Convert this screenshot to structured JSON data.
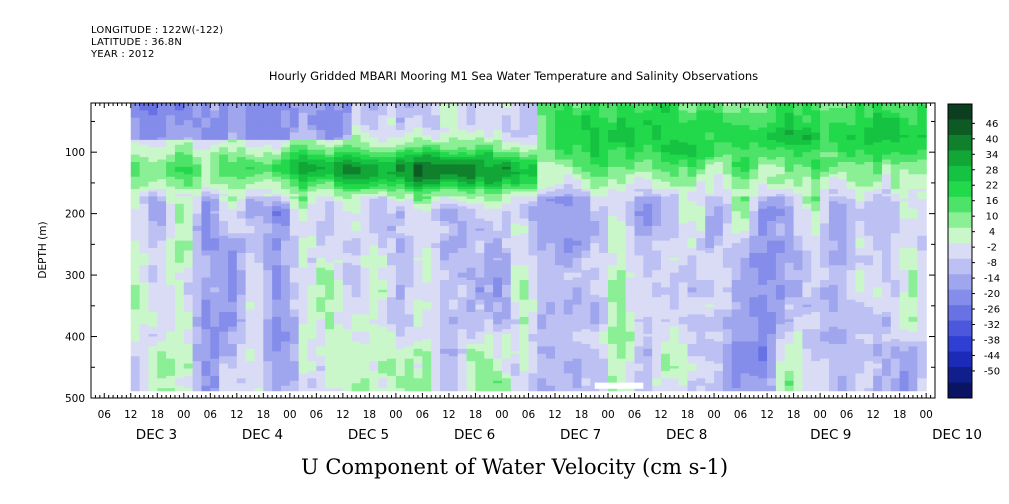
{
  "header": {
    "longitude": "LONGITUDE : 122W(-122)",
    "latitude": "LATITUDE : 36.8N",
    "year": "YEAR : 2012"
  },
  "chart_data": {
    "type": "heatmap",
    "title": "Hourly Gridded MBARI Mooring M1 Sea Water Temperature and Salinity Observations",
    "xlabel": "U Component of Water Velocity (cm s-1)",
    "ylabel": "DEPTH (m)",
    "y_ticks": [
      "100",
      "200",
      "300",
      "400",
      "500"
    ],
    "y_range": [
      20,
      500
    ],
    "hour_ticks": [
      "06",
      "12",
      "18",
      "00",
      "06",
      "12",
      "18",
      "00",
      "06",
      "12",
      "18",
      "00",
      "06",
      "12",
      "18",
      "00",
      "06",
      "12",
      "18",
      "00",
      "06",
      "12",
      "18",
      "00",
      "06",
      "12",
      "18",
      "00",
      "06",
      "12",
      "18",
      "00"
    ],
    "day_labels": [
      {
        "label": "DEC  3",
        "day": 3
      },
      {
        "label": "DEC  4",
        "day": 4
      },
      {
        "label": "DEC  5",
        "day": 5
      },
      {
        "label": "DEC  6",
        "day": 6
      },
      {
        "label": "DEC  7",
        "day": 7
      },
      {
        "label": "DEC  8",
        "day": 8
      },
      {
        "label": "DEC  9",
        "day": 9
      },
      {
        "label": "DEC 10",
        "day": 10
      }
    ],
    "time_range": {
      "start": "DEC 2 03:00",
      "end": "DEC 10 02:00"
    },
    "data_extent": {
      "start": "DEC 2 12:00",
      "end": "DEC 10 00:00",
      "depth_top": 20,
      "depth_bottom": 485
    },
    "gap": {
      "start": "DEC 6 21:00",
      "end": "DEC 7 08:00",
      "depth_from": 475,
      "depth_to": 485
    },
    "colorbar": {
      "levels": [
        "46",
        "40",
        "34",
        "28",
        "22",
        "16",
        "10",
        "4",
        "-2",
        "-8",
        "-14",
        "-20",
        "-26",
        "-32",
        "-38",
        "-44",
        "-50"
      ],
      "colors": [
        "#0b3f1f",
        "#0e5a24",
        "#11802c",
        "#12a637",
        "#16c241",
        "#22d84b",
        "#4de368",
        "#8aef95",
        "#c9f7ca",
        "#dadcf6",
        "#bcc0f2",
        "#a0a6ee",
        "#848dea",
        "#6872e4",
        "#4c58dc",
        "#2f3fd3",
        "#1b2bb8",
        "#101f8c",
        "#0a1463"
      ],
      "range": [
        -50,
        52
      ]
    },
    "field_description": {
      "dominant_band": {
        "depth_center": 130,
        "value_peak": 46
      },
      "surface_band_after": "DEC 6 12:00"
    }
  }
}
